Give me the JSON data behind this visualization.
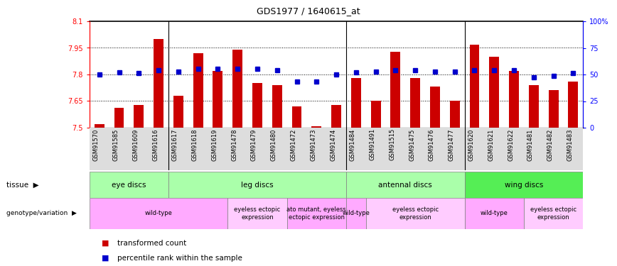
{
  "title": "GDS1977 / 1640615_at",
  "samples": [
    "GSM91570",
    "GSM91585",
    "GSM91609",
    "GSM91616",
    "GSM91617",
    "GSM91618",
    "GSM91619",
    "GSM91478",
    "GSM91479",
    "GSM91480",
    "GSM91472",
    "GSM91473",
    "GSM91474",
    "GSM91484",
    "GSM91491",
    "GSM91515",
    "GSM91475",
    "GSM91476",
    "GSM91477",
    "GSM91620",
    "GSM91621",
    "GSM91622",
    "GSM91481",
    "GSM91482",
    "GSM91483"
  ],
  "red_values": [
    7.52,
    7.61,
    7.63,
    8.0,
    7.68,
    7.92,
    7.82,
    7.94,
    7.75,
    7.74,
    7.62,
    7.51,
    7.63,
    7.78,
    7.65,
    7.93,
    7.78,
    7.73,
    7.65,
    7.97,
    7.9,
    7.82,
    7.74,
    7.71,
    7.76
  ],
  "blue_values": [
    50,
    52,
    51,
    54,
    53,
    55,
    55,
    55,
    55,
    54,
    43,
    43,
    50,
    52,
    53,
    54,
    54,
    53,
    53,
    54,
    54,
    54,
    47,
    49,
    51
  ],
  "ylim_left": [
    7.5,
    8.1
  ],
  "ylim_right": [
    0,
    100
  ],
  "yticks_left": [
    7.5,
    7.65,
    7.8,
    7.95,
    8.1
  ],
  "ytick_labels_left": [
    "7.5",
    "7.65",
    "7.8",
    "7.95",
    "8.1"
  ],
  "yticks_right": [
    0,
    25,
    50,
    75,
    100
  ],
  "ytick_labels_right": [
    "0",
    "25",
    "50",
    "75",
    "100%"
  ],
  "hlines": [
    7.65,
    7.8,
    7.95
  ],
  "tissue_groups": [
    {
      "label": "eye discs",
      "start": 0,
      "end": 4,
      "color": "#aaffaa"
    },
    {
      "label": "leg discs",
      "start": 4,
      "end": 13,
      "color": "#aaffaa"
    },
    {
      "label": "antennal discs",
      "start": 13,
      "end": 19,
      "color": "#aaffaa"
    },
    {
      "label": "wing discs",
      "start": 19,
      "end": 25,
      "color": "#55ee55"
    }
  ],
  "genotype_groups": [
    {
      "label": "wild-type",
      "start": 0,
      "end": 7,
      "color": "#ffaaff"
    },
    {
      "label": "eyeless ectopic\nexpression",
      "start": 7,
      "end": 10,
      "color": "#ffccff"
    },
    {
      "label": "ato mutant, eyeless\nectopic expression",
      "start": 10,
      "end": 13,
      "color": "#ffaaff"
    },
    {
      "label": "wild-type",
      "start": 13,
      "end": 14,
      "color": "#ffaaff"
    },
    {
      "label": "eyeless ectopic\nexpression",
      "start": 14,
      "end": 19,
      "color": "#ffccff"
    },
    {
      "label": "wild-type",
      "start": 19,
      "end": 22,
      "color": "#ffaaff"
    },
    {
      "label": "eyeless ectopic\nexpression",
      "start": 22,
      "end": 25,
      "color": "#ffccff"
    }
  ],
  "bar_color": "#cc0000",
  "dot_color": "#0000cc",
  "tissue_label": "tissue",
  "geno_label": "genotype/variation",
  "legend_items": [
    {
      "color": "#cc0000",
      "label": "transformed count"
    },
    {
      "color": "#0000cc",
      "label": "percentile rank within the sample"
    }
  ]
}
